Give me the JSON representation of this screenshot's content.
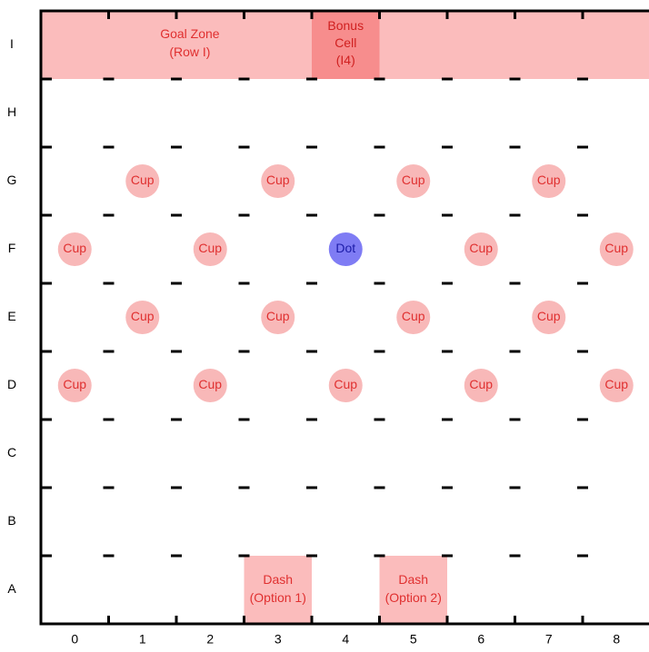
{
  "board": {
    "row_labels": [
      "A",
      "B",
      "C",
      "D",
      "E",
      "F",
      "G",
      "H",
      "I"
    ],
    "column_labels": [
      "0",
      "1",
      "2",
      "3",
      "4",
      "5",
      "6",
      "7",
      "8"
    ]
  },
  "zones": {
    "goal": {
      "text_line1": "Goal Zone",
      "text_line2": "(Row I)",
      "row": "I",
      "fill": "#fbbcbc",
      "text_color": "#e03030"
    },
    "bonus": {
      "text_line1": "Bonus",
      "text_line2": "Cell",
      "text_line3": "(I4)",
      "row": "I",
      "column": 4,
      "fill": "#f78d8d",
      "text_color": "#d02020"
    },
    "dashes": [
      {
        "text_line1": "Dash",
        "text_line2": "(Option 1)",
        "row": "A",
        "column": 3,
        "fill": "#fbbcbc",
        "text_color": "#e03030"
      },
      {
        "text_line1": "Dash",
        "text_line2": "(Option 2)",
        "row": "A",
        "column": 5,
        "fill": "#fbbcbc",
        "text_color": "#e03030"
      }
    ]
  },
  "pieces": {
    "cup_label": "Cup",
    "cup_fill": "#f8b8b8",
    "cup_text_color": "#e03030",
    "cups": [
      {
        "row": "G",
        "column": 1
      },
      {
        "row": "G",
        "column": 3
      },
      {
        "row": "G",
        "column": 5
      },
      {
        "row": "G",
        "column": 7
      },
      {
        "row": "F",
        "column": 0
      },
      {
        "row": "F",
        "column": 2
      },
      {
        "row": "F",
        "column": 6
      },
      {
        "row": "F",
        "column": 8
      },
      {
        "row": "E",
        "column": 1
      },
      {
        "row": "E",
        "column": 3
      },
      {
        "row": "E",
        "column": 5
      },
      {
        "row": "E",
        "column": 7
      },
      {
        "row": "D",
        "column": 0
      },
      {
        "row": "D",
        "column": 2
      },
      {
        "row": "D",
        "column": 4
      },
      {
        "row": "D",
        "column": 6
      },
      {
        "row": "D",
        "column": 8
      }
    ],
    "dot": {
      "label": "Dot",
      "row": "F",
      "column": 4,
      "fill": "#7f7cf4",
      "text_color": "#1c1ca8"
    }
  }
}
